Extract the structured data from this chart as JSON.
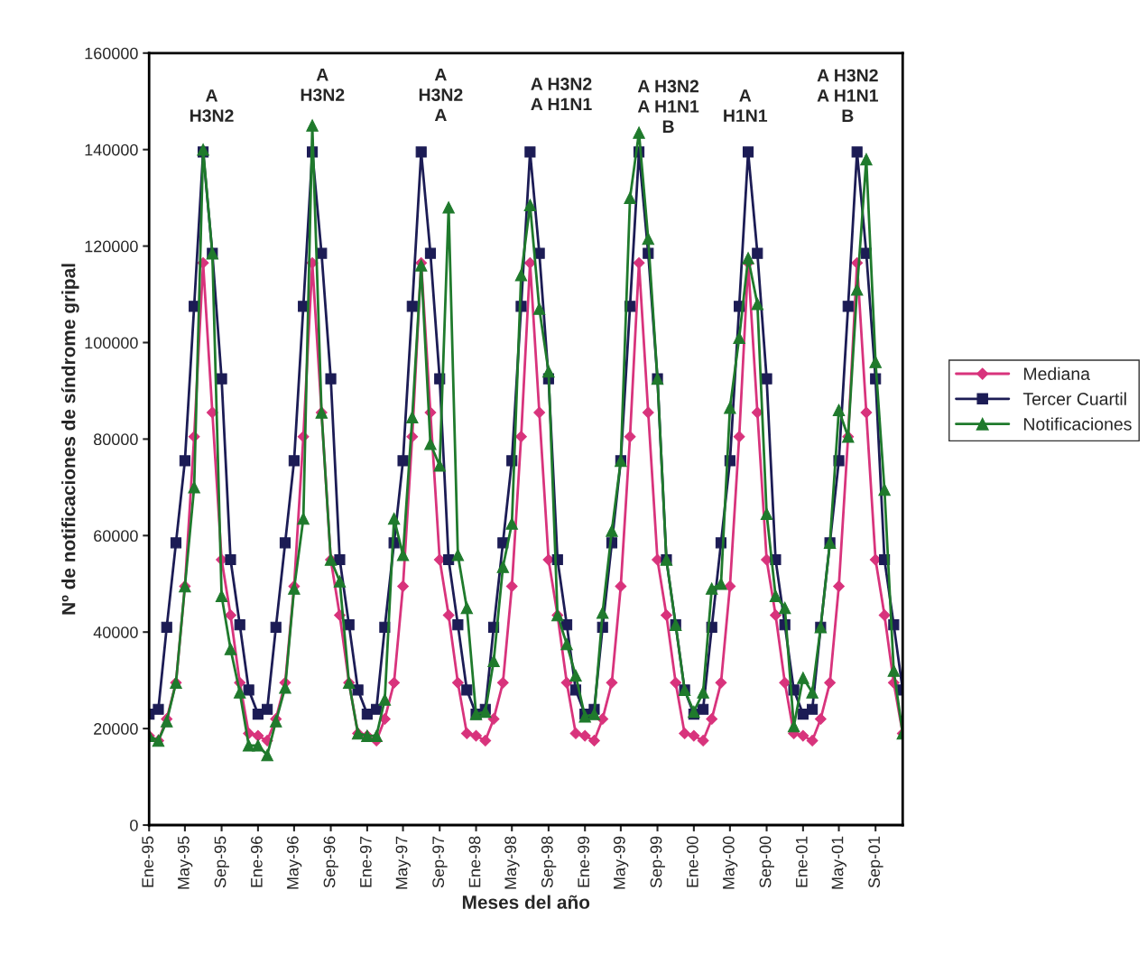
{
  "chart_data": {
    "type": "line",
    "xlabel": "Meses del año",
    "ylabel": "Nº de notificaciones de síndrome gripal",
    "x": [
      "1995-01",
      "1995-02",
      "1995-03",
      "1995-04",
      "1995-05",
      "1995-06",
      "1995-07",
      "1995-08",
      "1995-09",
      "1995-10",
      "1995-11",
      "1995-12",
      "1996-01",
      "1996-02",
      "1996-03",
      "1996-04",
      "1996-05",
      "1996-06",
      "1996-07",
      "1996-08",
      "1996-09",
      "1996-10",
      "1996-11",
      "1996-12",
      "1997-01",
      "1997-02",
      "1997-03",
      "1997-04",
      "1997-05",
      "1997-06",
      "1997-07",
      "1997-08",
      "1997-09",
      "1997-10",
      "1997-11",
      "1997-12",
      "1998-01",
      "1998-02",
      "1998-03",
      "1998-04",
      "1998-05",
      "1998-06",
      "1998-07",
      "1998-08",
      "1998-09",
      "1998-10",
      "1998-11",
      "1998-12",
      "1999-01",
      "1999-02",
      "1999-03",
      "1999-04",
      "1999-05",
      "1999-06",
      "1999-07",
      "1999-08",
      "1999-09",
      "1999-10",
      "1999-11",
      "1999-12",
      "2000-01",
      "2000-02",
      "2000-03",
      "2000-04",
      "2000-05",
      "2000-06",
      "2000-07",
      "2000-08",
      "2000-09",
      "2000-10",
      "2000-11",
      "2000-12",
      "2001-01",
      "2001-02",
      "2001-03",
      "2001-04",
      "2001-05",
      "2001-06",
      "2001-07",
      "2001-08",
      "2001-09",
      "2001-10",
      "2001-11",
      "2001-12"
    ],
    "series": [
      {
        "name": "Mediana",
        "color": "#d8337c",
        "marker": "diamond",
        "values": [
          18500,
          17500,
          22000,
          29500,
          49500,
          80500,
          116500,
          85500,
          55000,
          43500,
          29500,
          19000,
          18500,
          17500,
          22000,
          29500,
          49500,
          80500,
          116500,
          85500,
          55000,
          43500,
          29500,
          19000,
          18500,
          17500,
          22000,
          29500,
          49500,
          80500,
          116500,
          85500,
          55000,
          43500,
          29500,
          19000,
          18500,
          17500,
          22000,
          29500,
          49500,
          80500,
          116500,
          85500,
          55000,
          43500,
          29500,
          19000,
          18500,
          17500,
          22000,
          29500,
          49500,
          80500,
          116500,
          85500,
          55000,
          43500,
          29500,
          19000,
          18500,
          17500,
          22000,
          29500,
          49500,
          80500,
          116500,
          85500,
          55000,
          43500,
          29500,
          19000,
          18500,
          17500,
          22000,
          29500,
          49500,
          80500,
          116500,
          85500,
          55000,
          43500,
          29500,
          19000
        ]
      },
      {
        "name": "Tercer Cuartil",
        "color": "#1c1c55",
        "marker": "square",
        "values": [
          23000,
          24000,
          41000,
          58500,
          75500,
          107500,
          139500,
          118500,
          92500,
          55000,
          41500,
          28000,
          23000,
          24000,
          41000,
          58500,
          75500,
          107500,
          139500,
          118500,
          92500,
          55000,
          41500,
          28000,
          23000,
          24000,
          41000,
          58500,
          75500,
          107500,
          139500,
          118500,
          92500,
          55000,
          41500,
          28000,
          23000,
          24000,
          41000,
          58500,
          75500,
          107500,
          139500,
          118500,
          92500,
          55000,
          41500,
          28000,
          23000,
          24000,
          41000,
          58500,
          75500,
          107500,
          139500,
          118500,
          92500,
          55000,
          41500,
          28000,
          23000,
          24000,
          41000,
          58500,
          75500,
          107500,
          139500,
          118500,
          92500,
          55000,
          41500,
          28000,
          23000,
          24000,
          41000,
          58500,
          75500,
          107500,
          139500,
          118500,
          92500,
          55000,
          41500,
          28000
        ]
      },
      {
        "name": "Notificaciones",
        "color": "#1f7a2c",
        "marker": "triangle",
        "values": [
          18500,
          17500,
          21500,
          29500,
          49500,
          70000,
          140000,
          118500,
          47500,
          36500,
          27500,
          16500,
          16500,
          14500,
          21500,
          28500,
          49000,
          63500,
          145000,
          85500,
          55000,
          50500,
          29500,
          19000,
          18500,
          18500,
          26000,
          63500,
          56000,
          84500,
          116000,
          79000,
          74500,
          128000,
          56000,
          45000,
          23000,
          23500,
          34000,
          53500,
          62500,
          114000,
          128500,
          107000,
          94000,
          43500,
          37500,
          31000,
          22500,
          23000,
          44000,
          61000,
          75500,
          130000,
          143500,
          121500,
          92500,
          55000,
          41500,
          28000,
          23500,
          27500,
          49000,
          50000,
          86500,
          101000,
          117500,
          108000,
          64500,
          47500,
          45000,
          20500,
          30500,
          27500,
          41000,
          58500,
          86000,
          80500,
          111000,
          138000,
          96000,
          69500,
          32000,
          19000
        ]
      }
    ],
    "xlim": [
      "1995-01",
      "2001-12"
    ],
    "xticks": [
      {
        "value": "1995-01",
        "label": "Ene-95"
      },
      {
        "value": "1995-05",
        "label": "May-95"
      },
      {
        "value": "1995-09",
        "label": "Sep-95"
      },
      {
        "value": "1996-01",
        "label": "Ene-96"
      },
      {
        "value": "1996-05",
        "label": "May-96"
      },
      {
        "value": "1996-09",
        "label": "Sep-96"
      },
      {
        "value": "1997-01",
        "label": "Ene-97"
      },
      {
        "value": "1997-05",
        "label": "May-97"
      },
      {
        "value": "1997-09",
        "label": "Sep-97"
      },
      {
        "value": "1998-01",
        "label": "Ene-98"
      },
      {
        "value": "1998-05",
        "label": "May-98"
      },
      {
        "value": "1998-09",
        "label": "Sep-98"
      },
      {
        "value": "1999-01",
        "label": "Ene-99"
      },
      {
        "value": "1999-05",
        "label": "May-99"
      },
      {
        "value": "1999-09",
        "label": "Sep-99"
      },
      {
        "value": "2000-01",
        "label": "Ene-00"
      },
      {
        "value": "2000-05",
        "label": "May-00"
      },
      {
        "value": "2000-09",
        "label": "Sep-00"
      },
      {
        "value": "2001-01",
        "label": "Ene-01"
      },
      {
        "value": "2001-05",
        "label": "May-01"
      },
      {
        "value": "2001-09",
        "label": "Sep-01"
      }
    ],
    "ylim": [
      0,
      160000
    ],
    "yticks": [
      0,
      20000,
      40000,
      60000,
      80000,
      100000,
      120000,
      140000,
      160000
    ],
    "grid": false,
    "legend": "right",
    "line_style": "solid",
    "annotations": [
      "A\nH3N2",
      "A\nH3N2",
      "A\nH3N2\nA",
      "A H3N2\nA H1N1",
      "A H3N2\nA H1N1\nB",
      "A\nH1N1",
      "A H3N2\nA H1N1\nB"
    ]
  }
}
